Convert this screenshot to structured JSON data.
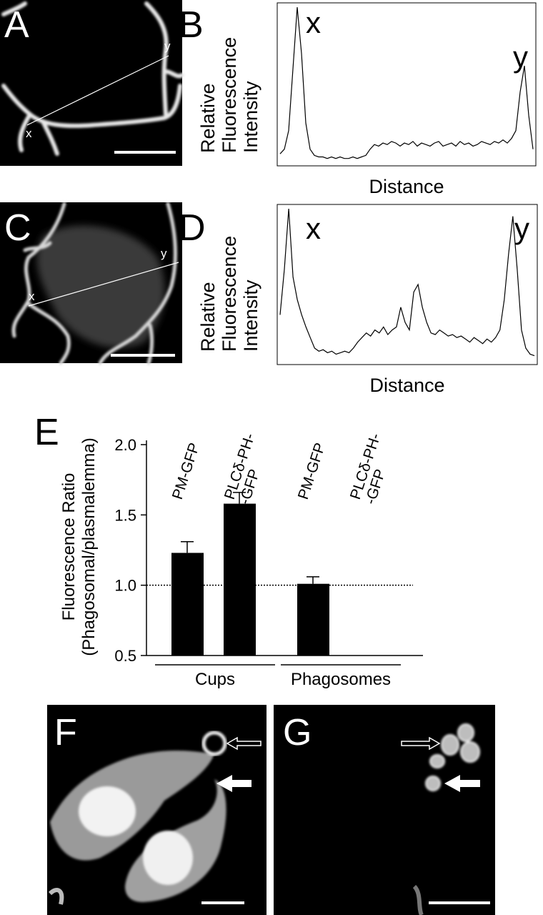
{
  "images": [
    {
      "panel": "A",
      "marks": [
        "x",
        "y"
      ]
    },
    {
      "panel": "C",
      "marks": [
        "x",
        "y"
      ]
    },
    {
      "panel": "F"
    },
    {
      "panel": "G"
    }
  ],
  "chart_data": [
    {
      "type": "line",
      "panel": "B",
      "annotations": [
        "x",
        "y"
      ],
      "x_label": "Distance",
      "y_label": [
        "Relative",
        "Fluorescence",
        "Intensity"
      ],
      "ylim": [
        0,
        100
      ],
      "color": "#000000",
      "values": [
        5,
        8,
        20,
        60,
        100,
        70,
        25,
        8,
        4,
        3,
        3,
        2,
        3,
        2,
        3,
        2,
        2,
        3,
        2,
        3,
        4,
        8,
        11,
        10,
        12,
        11,
        13,
        12,
        10,
        12,
        11,
        13,
        10,
        12,
        11,
        10,
        12,
        13,
        10,
        11,
        12,
        10,
        13,
        11,
        12,
        10,
        11,
        13,
        12,
        11,
        13,
        12,
        14,
        12,
        15,
        20,
        45,
        62,
        30,
        8
      ]
    },
    {
      "type": "line",
      "panel": "D",
      "annotations": [
        "x",
        "y"
      ],
      "x_label": "Distance",
      "y_label": [
        "Relative",
        "Fluorescence",
        "Intensity"
      ],
      "ylim": [
        0,
        100
      ],
      "color": "#000000",
      "values": [
        30,
        60,
        100,
        55,
        40,
        30,
        22,
        15,
        8,
        6,
        7,
        5,
        6,
        4,
        5,
        6,
        5,
        8,
        12,
        15,
        18,
        16,
        20,
        18,
        22,
        17,
        20,
        22,
        35,
        25,
        20,
        45,
        50,
        35,
        25,
        18,
        17,
        20,
        18,
        16,
        17,
        15,
        16,
        14,
        12,
        15,
        13,
        11,
        14,
        12,
        15,
        20,
        40,
        70,
        95,
        60,
        20,
        8,
        4,
        3
      ]
    },
    {
      "type": "bar",
      "panel": "E",
      "y_label": [
        "Fluorescence Ratio",
        "(Phagosomal/plasmalemma)"
      ],
      "categories": [
        "PM-GFP",
        "PLCδ-PH-\n-GFP",
        "PM-GFP",
        "PLCδ-PH-\n-GFP"
      ],
      "group_labels": [
        "Cups",
        "Phagosomes"
      ],
      "values": [
        1.23,
        1.58,
        1.01,
        null
      ],
      "errors": [
        0.08,
        0.08,
        0.05,
        null
      ],
      "reference_line": 1.0,
      "color": "#000000",
      "ylim": [
        0.5,
        2.0
      ],
      "yticks": [
        {
          "value": 0.5,
          "label": "0.5"
        },
        {
          "value": 1,
          "label": "1.0"
        },
        {
          "value": 1.5,
          "label": "1.5"
        },
        {
          "value": 2,
          "label": "2.0"
        }
      ]
    }
  ]
}
